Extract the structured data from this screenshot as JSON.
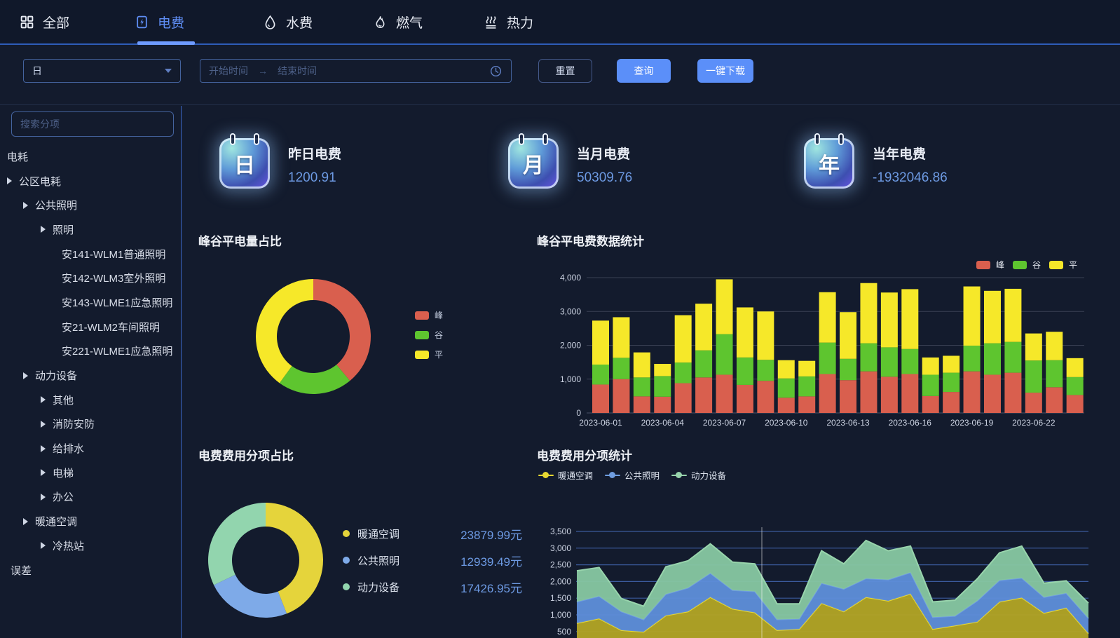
{
  "nav": {
    "tabs": [
      {
        "label": "全部",
        "icon": "grid-icon",
        "active": false
      },
      {
        "label": "电费",
        "icon": "electric-meter-icon",
        "active": true
      },
      {
        "label": "水费",
        "icon": "water-drop-icon",
        "active": false
      },
      {
        "label": "燃气",
        "icon": "gas-flame-icon",
        "active": false
      },
      {
        "label": "热力",
        "icon": "heat-steam-icon",
        "active": false
      }
    ]
  },
  "filter_bar": {
    "granularity_select": {
      "value": "日"
    },
    "date_range": {
      "start_placeholder": "开始时间",
      "separator": "→",
      "end_placeholder": "结束时间"
    },
    "reset_label": "重置",
    "query_label": "查询",
    "download_label": "一键下载"
  },
  "sidebar": {
    "search_placeholder": "搜索分项",
    "tree": [
      {
        "label": "电耗",
        "level": 0,
        "caret": false
      },
      {
        "label": "公区电耗",
        "level": 0,
        "caret": true
      },
      {
        "label": "公共照明",
        "level": 1,
        "caret": true
      },
      {
        "label": "照明",
        "level": 2,
        "caret": true
      },
      {
        "label": "安141-WLM1普通照明",
        "level": 3,
        "caret": false
      },
      {
        "label": "安142-WLM3室外照明",
        "level": 3,
        "caret": false
      },
      {
        "label": "安143-WLME1应急照明",
        "level": 3,
        "caret": false
      },
      {
        "label": "安21-WLM2车间照明",
        "level": 3,
        "caret": false
      },
      {
        "label": "安221-WLME1应急照明",
        "level": 3,
        "caret": false
      },
      {
        "label": "动力设备",
        "level": 1,
        "caret": true
      },
      {
        "label": "其他",
        "level": 2,
        "caret": true
      },
      {
        "label": "消防安防",
        "level": 2,
        "caret": true
      },
      {
        "label": "给排水",
        "level": 2,
        "caret": true
      },
      {
        "label": "电梯",
        "level": 2,
        "caret": true
      },
      {
        "label": "办公",
        "level": 2,
        "caret": true
      },
      {
        "label": "暖通空调",
        "level": 1,
        "caret": true
      },
      {
        "label": "冷热站",
        "level": 2,
        "caret": true
      },
      {
        "label": "误差",
        "level": 0,
        "caret": false,
        "indent": 15
      }
    ]
  },
  "stats": [
    {
      "icon_glyph": "日",
      "label": "昨日电费",
      "value": "1200.91"
    },
    {
      "icon_glyph": "月",
      "label": "当月电费",
      "value": "50309.76"
    },
    {
      "icon_glyph": "年",
      "label": "当年电费",
      "value": "-1932046.86"
    }
  ],
  "chart_data": [
    {
      "id": "peak-valley-energy-donut",
      "type": "pie",
      "donut": true,
      "title": "峰谷平电量占比",
      "legend_position": "right",
      "series": [
        {
          "name": "峰",
          "value": 39,
          "color": "#d95f4e"
        },
        {
          "name": "谷",
          "value": 21,
          "color": "#5ec52f"
        },
        {
          "name": "平",
          "value": 40,
          "color": "#f6e829"
        }
      ],
      "note": "values are estimated percentages of ring arc"
    },
    {
      "id": "peak-valley-cost-bars",
      "type": "bar",
      "stacked": true,
      "title": "峰谷平电费数据统计",
      "legend_position": "top-right",
      "categories": [
        "2023-06-01",
        "2023-06-02",
        "2023-06-03",
        "2023-06-04",
        "2023-06-05",
        "2023-06-06",
        "2023-06-07",
        "2023-06-08",
        "2023-06-09",
        "2023-06-10",
        "2023-06-11",
        "2023-06-12",
        "2023-06-13",
        "2023-06-14",
        "2023-06-15",
        "2023-06-16",
        "2023-06-17",
        "2023-06-18",
        "2023-06-19",
        "2023-06-20",
        "2023-06-21",
        "2023-06-22",
        "2023-06-23",
        "2023-06-24"
      ],
      "xtick_every": 3,
      "ylim": [
        0,
        4000
      ],
      "yticks": [
        0,
        1000,
        2000,
        3000,
        4000
      ],
      "grid": true,
      "series": [
        {
          "name": "峰",
          "color": "#d95f4e",
          "values": [
            840,
            1000,
            490,
            480,
            880,
            1050,
            1130,
            830,
            950,
            450,
            490,
            1150,
            970,
            1230,
            1070,
            1150,
            500,
            620,
            1230,
            1130,
            1190,
            600,
            760,
            530
          ]
        },
        {
          "name": "谷",
          "color": "#5ec52f",
          "values": [
            590,
            630,
            560,
            610,
            610,
            800,
            1200,
            810,
            620,
            570,
            590,
            930,
            630,
            830,
            870,
            740,
            630,
            570,
            760,
            930,
            910,
            950,
            800,
            530
          ]
        },
        {
          "name": "平",
          "color": "#f6e829",
          "values": [
            1300,
            1200,
            740,
            360,
            1400,
            1380,
            1620,
            1480,
            1430,
            540,
            460,
            1490,
            1380,
            1780,
            1620,
            1770,
            510,
            500,
            1750,
            1550,
            1570,
            800,
            840,
            560
          ]
        }
      ]
    },
    {
      "id": "cost-breakdown-donut",
      "type": "pie",
      "donut": true,
      "title": "电费费用分项占比",
      "legend_position": "right",
      "series": [
        {
          "name": "暖通空调",
          "value": 23879.99,
          "display": "23879.99元",
          "color": "#e5d43b"
        },
        {
          "name": "公共照明",
          "value": 12939.49,
          "display": "12939.49元",
          "color": "#7eaae8"
        },
        {
          "name": "动力设备",
          "value": 17426.95,
          "display": "17426.95元",
          "color": "#92d5ae"
        }
      ]
    },
    {
      "id": "cost-breakdown-area",
      "type": "area",
      "stacked": true,
      "title": "电费费用分项统计",
      "legend_position": "top-left",
      "x_points": 24,
      "x_labels_visible": false,
      "yticks_visible": [
        500,
        1000,
        1500,
        2000,
        2500,
        3000,
        3500
      ],
      "grid": true,
      "series": [
        {
          "name": "暖通空调",
          "color": "#e8d832",
          "fill": "#b1a325",
          "values": [
            750,
            890,
            540,
            490,
            980,
            1100,
            1530,
            1180,
            1070,
            540,
            575,
            1350,
            1100,
            1530,
            1420,
            1630,
            575,
            680,
            790,
            1390,
            1515,
            1055,
            1210,
            440
          ]
        },
        {
          "name": "公共照明",
          "color": "#6f9de0",
          "fill": "#5e8ed8",
          "values": [
            640,
            670,
            560,
            370,
            640,
            710,
            720,
            560,
            630,
            320,
            305,
            600,
            675,
            560,
            635,
            640,
            355,
            285,
            630,
            645,
            590,
            475,
            440,
            455
          ]
        },
        {
          "name": "动力设备",
          "color": "#98d4ac",
          "fill": "#86c6a1",
          "values": [
            930,
            860,
            390,
            400,
            820,
            810,
            880,
            840,
            830,
            470,
            450,
            970,
            755,
            1140,
            865,
            790,
            460,
            475,
            660,
            825,
            955,
            420,
            370,
            455
          ]
        }
      ]
    }
  ],
  "colors": {
    "accent_blue": "#5b8ff9",
    "active_tab": "#5f8ef5",
    "stat_value": "#6d9ae3",
    "axis_label": "#ccd3e2"
  }
}
